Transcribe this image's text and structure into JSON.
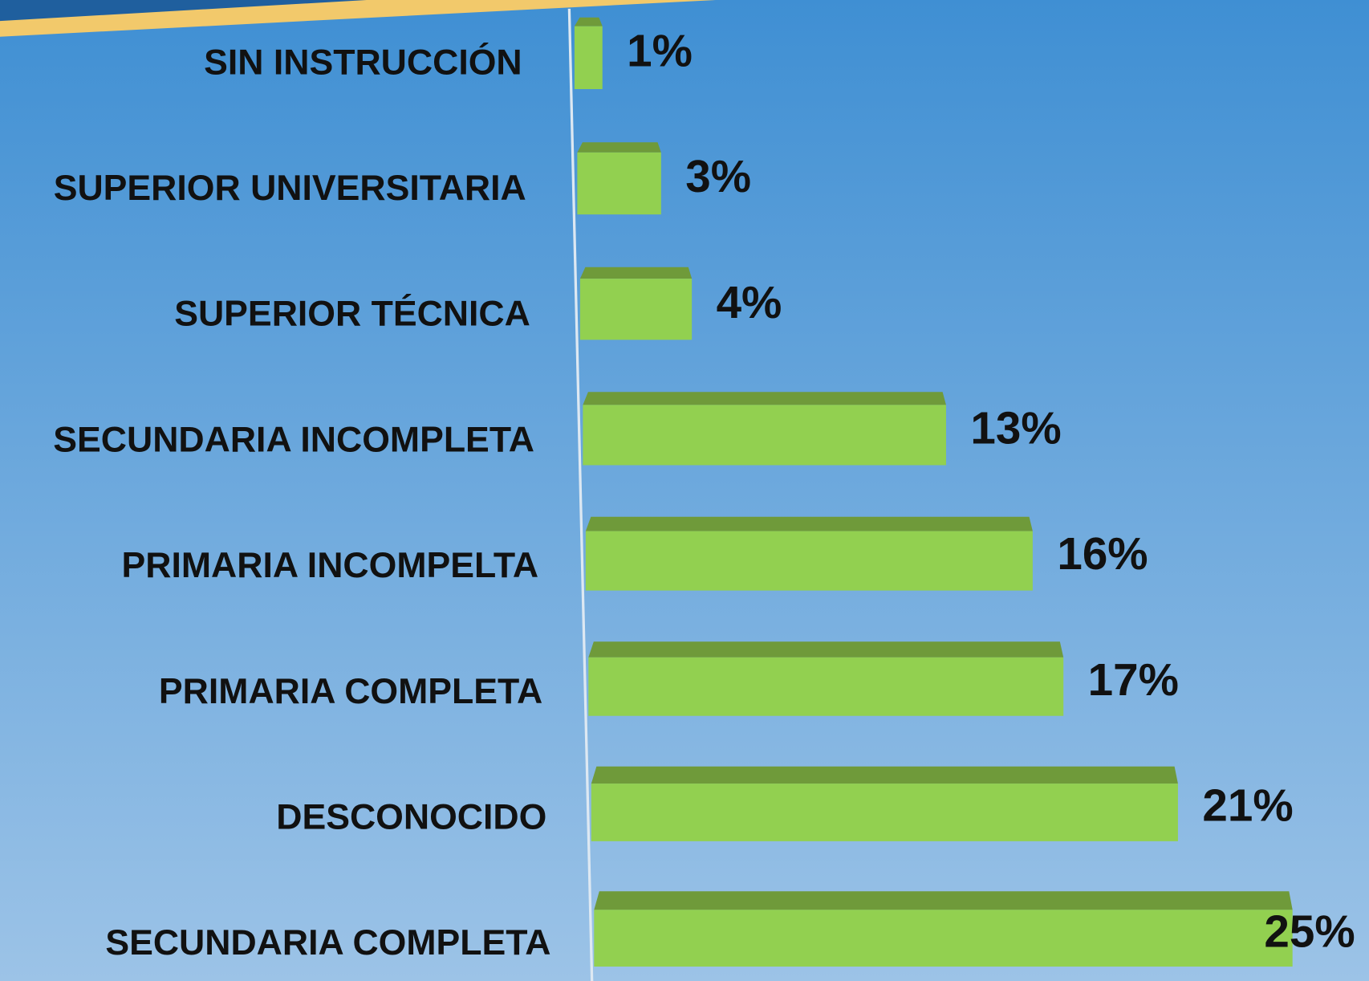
{
  "chart_data": {
    "type": "bar",
    "orientation": "horizontal",
    "categories": [
      "SIN INSTRUCCIÓN",
      "SUPERIOR UNIVERSITARIA",
      "SUPERIOR TÉCNICA",
      "SECUNDARIA INCOMPLETA",
      "PRIMARIA INCOMPELTA",
      "PRIMARIA COMPLETA",
      "DESCONOCIDO",
      "SECUNDARIA COMPLETA"
    ],
    "values": [
      1,
      3,
      4,
      13,
      16,
      17,
      21,
      25
    ],
    "value_labels": [
      "1%",
      "3%",
      "4%",
      "13%",
      "16%",
      "17%",
      "21%",
      "25%"
    ],
    "color": "#92d050"
  }
}
